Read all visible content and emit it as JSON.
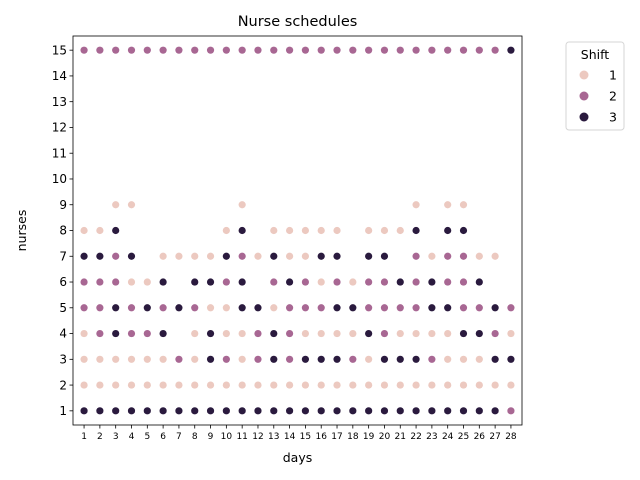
{
  "chart_data": {
    "type": "scatter",
    "title": "Nurse schedules",
    "xlabel": "days",
    "ylabel": "nurses",
    "x_ticks": [
      1,
      2,
      3,
      4,
      5,
      6,
      7,
      8,
      9,
      10,
      11,
      12,
      13,
      14,
      15,
      16,
      17,
      18,
      19,
      20,
      21,
      22,
      23,
      24,
      25,
      26,
      27,
      28
    ],
    "y_ticks": [
      1,
      2,
      3,
      4,
      5,
      6,
      7,
      8,
      9,
      10,
      11,
      12,
      13,
      14,
      15
    ],
    "xlim": [
      0.3,
      28.7
    ],
    "ylim": [
      0.45,
      15.55
    ],
    "grid": false,
    "legend": {
      "title": "Shift",
      "placement": "outside-top-right",
      "entries": [
        {
          "label": "1",
          "color": "#ecc9c0"
        },
        {
          "label": "2",
          "color": "#a86793"
        },
        {
          "label": "3",
          "color": "#2a1a3e"
        }
      ]
    },
    "days": [
      {
        "day": 1,
        "shift1": [
          2,
          3,
          4,
          8
        ],
        "shift2": [
          5,
          6,
          15
        ],
        "shift3": [
          1,
          7
        ]
      },
      {
        "day": 2,
        "shift1": [
          2,
          3,
          8
        ],
        "shift2": [
          4,
          5,
          6,
          15
        ],
        "shift3": [
          1,
          7
        ]
      },
      {
        "day": 3,
        "shift1": [
          2,
          3,
          9
        ],
        "shift2": [
          6,
          7,
          15
        ],
        "shift3": [
          1,
          4,
          5,
          8
        ]
      },
      {
        "day": 4,
        "shift1": [
          2,
          3,
          6,
          9
        ],
        "shift2": [
          4,
          5,
          15
        ],
        "shift3": [
          1,
          7
        ]
      },
      {
        "day": 5,
        "shift1": [
          2,
          3,
          6
        ],
        "shift2": [
          4,
          15
        ],
        "shift3": [
          1,
          5
        ]
      },
      {
        "day": 6,
        "shift1": [
          2,
          3,
          7
        ],
        "shift2": [
          5,
          15
        ],
        "shift3": [
          1,
          4,
          6
        ]
      },
      {
        "day": 7,
        "shift1": [
          2,
          7
        ],
        "shift2": [
          3,
          15
        ],
        "shift3": [
          1,
          5
        ]
      },
      {
        "day": 8,
        "shift1": [
          2,
          3,
          4,
          7
        ],
        "shift2": [
          5,
          15
        ],
        "shift3": [
          1,
          6
        ]
      },
      {
        "day": 9,
        "shift1": [
          2,
          5,
          7
        ],
        "shift2": [
          15
        ],
        "shift3": [
          1,
          3,
          4,
          6
        ]
      },
      {
        "day": 10,
        "shift1": [
          2,
          4,
          5,
          8
        ],
        "shift2": [
          3,
          6,
          15
        ],
        "shift3": [
          1,
          7
        ]
      },
      {
        "day": 11,
        "shift1": [
          2,
          3,
          4,
          9
        ],
        "shift2": [
          7,
          15
        ],
        "shift3": [
          1,
          5,
          6,
          8
        ]
      },
      {
        "day": 12,
        "shift1": [
          2,
          7
        ],
        "shift2": [
          3,
          4,
          15
        ],
        "shift3": [
          1,
          5
        ]
      },
      {
        "day": 13,
        "shift1": [
          2,
          5,
          8
        ],
        "shift2": [
          6,
          15
        ],
        "shift3": [
          1,
          3,
          4,
          7
        ]
      },
      {
        "day": 14,
        "shift1": [
          2,
          7,
          8
        ],
        "shift2": [
          3,
          4,
          5,
          15
        ],
        "shift3": [
          1,
          6
        ]
      },
      {
        "day": 15,
        "shift1": [
          2,
          4,
          7,
          8
        ],
        "shift2": [
          5,
          6,
          15
        ],
        "shift3": [
          1,
          3
        ]
      },
      {
        "day": 16,
        "shift1": [
          2,
          4,
          6,
          8
        ],
        "shift2": [
          5,
          15
        ],
        "shift3": [
          1,
          3,
          7
        ]
      },
      {
        "day": 17,
        "shift1": [
          2,
          4,
          8
        ],
        "shift2": [
          6,
          15
        ],
        "shift3": [
          1,
          3,
          5,
          7
        ]
      },
      {
        "day": 18,
        "shift1": [
          2,
          4,
          6
        ],
        "shift2": [
          3,
          15
        ],
        "shift3": [
          1,
          5
        ]
      },
      {
        "day": 19,
        "shift1": [
          2,
          3,
          8
        ],
        "shift2": [
          5,
          6,
          15
        ],
        "shift3": [
          1,
          4,
          7
        ]
      },
      {
        "day": 20,
        "shift1": [
          2,
          8
        ],
        "shift2": [
          4,
          5,
          6,
          15
        ],
        "shift3": [
          1,
          3,
          7
        ]
      },
      {
        "day": 21,
        "shift1": [
          2,
          4,
          8
        ],
        "shift2": [
          5,
          15
        ],
        "shift3": [
          1,
          3,
          6
        ]
      },
      {
        "day": 22,
        "shift1": [
          2,
          4,
          9
        ],
        "shift2": [
          5,
          6,
          7,
          15
        ],
        "shift3": [
          1,
          3,
          8
        ]
      },
      {
        "day": 23,
        "shift1": [
          2,
          4,
          7
        ],
        "shift2": [
          3,
          15
        ],
        "shift3": [
          1,
          5,
          6
        ]
      },
      {
        "day": 24,
        "shift1": [
          2,
          3,
          4,
          9
        ],
        "shift2": [
          6,
          7,
          15
        ],
        "shift3": [
          1,
          5,
          8
        ]
      },
      {
        "day": 25,
        "shift1": [
          2,
          3,
          9
        ],
        "shift2": [
          5,
          6,
          7,
          15
        ],
        "shift3": [
          1,
          4,
          8
        ]
      },
      {
        "day": 26,
        "shift1": [
          2,
          3,
          7
        ],
        "shift2": [
          5,
          15
        ],
        "shift3": [
          1,
          4,
          6
        ]
      },
      {
        "day": 27,
        "shift1": [
          2,
          7
        ],
        "shift2": [
          4,
          15
        ],
        "shift3": [
          1,
          3,
          5
        ]
      },
      {
        "day": 28,
        "shift1": [
          2,
          4
        ],
        "shift2": [
          1,
          5
        ],
        "shift3": [
          3,
          15
        ]
      }
    ]
  }
}
